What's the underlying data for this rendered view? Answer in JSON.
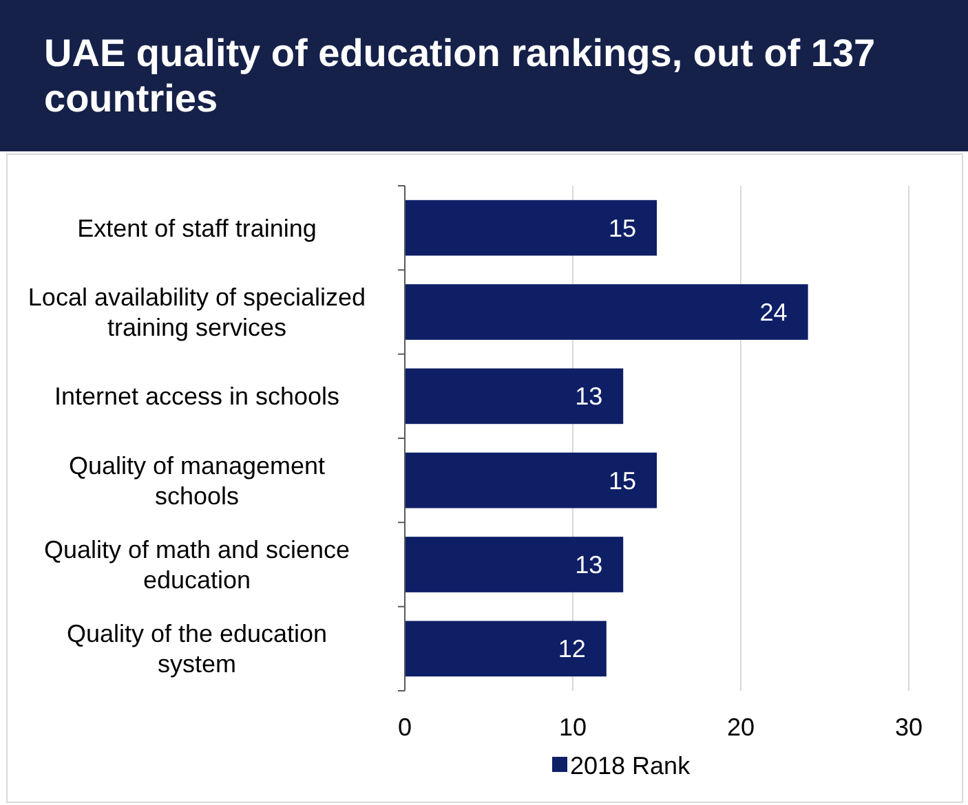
{
  "chart_data": {
    "type": "bar",
    "orientation": "horizontal",
    "title": "UAE quality of education rankings, out of 137 countries",
    "categories": [
      "Extent of staff training",
      "Local availability of specialized training services",
      "Internet access in schools",
      "Quality of management schools",
      "Quality of math and science education",
      "Quality of the education system"
    ],
    "series": [
      {
        "name": "2018 Rank",
        "color": "#0e1f66",
        "values": [
          15,
          24,
          13,
          15,
          13,
          12
        ]
      }
    ],
    "xlim": [
      0,
      30
    ],
    "xticks": [
      0,
      10,
      20,
      30
    ],
    "grid": "x",
    "data_labels": true,
    "legend": "bottom"
  }
}
